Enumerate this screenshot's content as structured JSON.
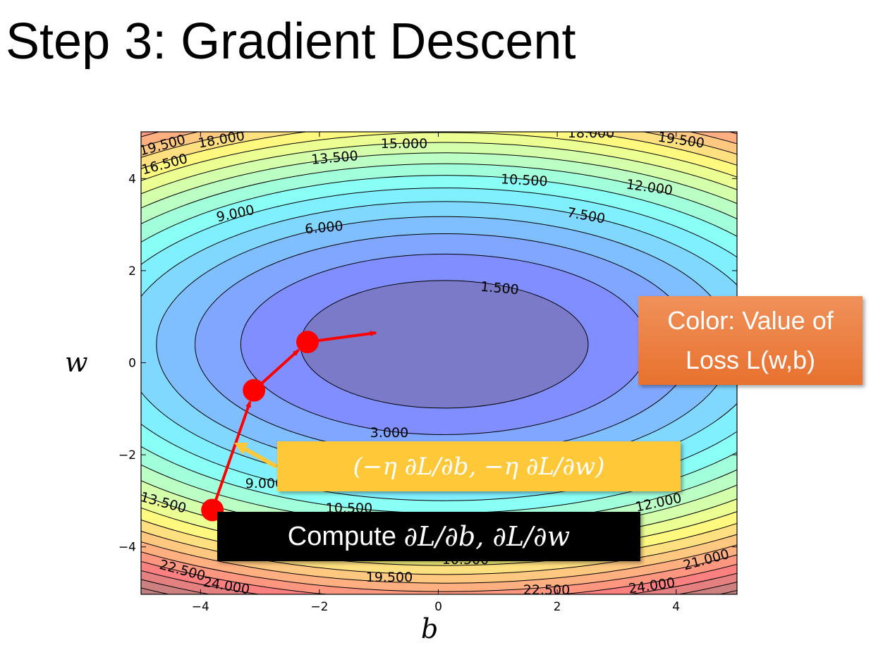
{
  "slide": {
    "title": "Step 3: Gradient Descent"
  },
  "annotations": {
    "loss_box_line1": "Color: Value of",
    "loss_box_line2": "Loss L(w,b)",
    "step_box": "(−η ∂L/∂b, −η ∂L/∂w)",
    "grad_box_prefix": "Compute ",
    "grad_box_math": "∂L/∂b, ∂L/∂w"
  },
  "colors": {
    "path": "#ff0000",
    "step_arrow": "#fec839",
    "loss_box": "#ec7a3c",
    "step_box": "#fec839",
    "grad_box": "#000000"
  },
  "chart_data": {
    "type": "heatmap",
    "subtype": "filled contour",
    "colormap": "jet",
    "xlabel": "b",
    "ylabel": "w",
    "xlim": [
      -5,
      5
    ],
    "ylim": [
      -5,
      5
    ],
    "xticks": [
      "−4",
      "−2",
      "0",
      "2",
      "4"
    ],
    "xtick_values": [
      -4,
      -2,
      0,
      2,
      4
    ],
    "yticks": [
      "4",
      "2",
      "0",
      "−2",
      "−4"
    ],
    "ytick_values": [
      4,
      2,
      0,
      -2,
      -4
    ],
    "level_step": 1.5,
    "levels": [
      1.5,
      3,
      4.5,
      6,
      7.5,
      9,
      10.5,
      12,
      13.5,
      15,
      16.5,
      18,
      19.5,
      21,
      22.5,
      24
    ],
    "minimum": {
      "b": 0.1,
      "w": 0.4
    },
    "contour_labels": [
      "19.500",
      "18.000",
      "16.500",
      "13.500",
      "15.000",
      "18.000",
      "19.500",
      "10.500",
      "12.000",
      "9.000",
      "7.500",
      "6.000",
      "1.500",
      "3.000",
      "9.000",
      "13.500",
      "10.500",
      "12.000",
      "22.500",
      "24.000",
      "19.500",
      "22.500",
      "24.000",
      "21.000",
      "10.500"
    ],
    "descent_path": [
      {
        "b": -3.8,
        "w": -3.2
      },
      {
        "b": -3.1,
        "w": -0.6
      },
      {
        "b": -2.2,
        "w": 0.45
      },
      {
        "b": -1.05,
        "w": 0.65
      }
    ]
  }
}
